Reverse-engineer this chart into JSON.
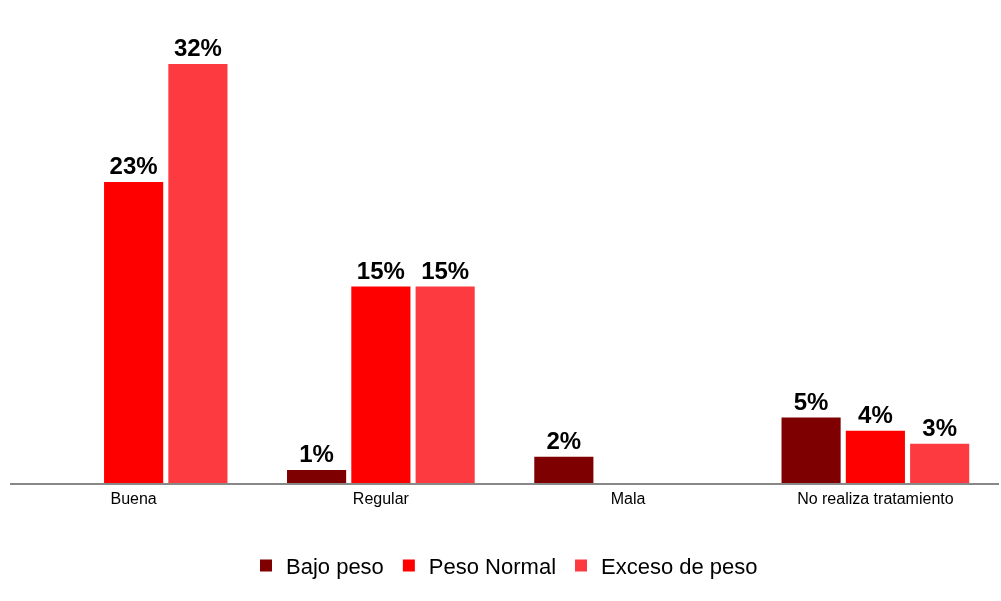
{
  "chart_data": {
    "type": "bar",
    "categories": [
      "Buena",
      "Regular",
      "Mala",
      "No realiza tratamiento"
    ],
    "series": [
      {
        "name": "Bajo peso",
        "color": "#7f0000",
        "values": [
          null,
          1,
          2,
          5
        ],
        "value_labels": [
          null,
          "1%",
          "2%",
          "5%"
        ]
      },
      {
        "name": "Peso Normal",
        "color": "#ff0000",
        "values": [
          23,
          15,
          null,
          4
        ],
        "value_labels": [
          "23%",
          "15%",
          null,
          "4%"
        ]
      },
      {
        "name": "Exceso de peso",
        "color": "#fc3a40",
        "values": [
          32,
          15,
          null,
          3
        ],
        "value_labels": [
          "32%",
          "15%",
          null,
          "3%"
        ]
      }
    ],
    "legend": "bottom",
    "tick_labels": "x"
  }
}
